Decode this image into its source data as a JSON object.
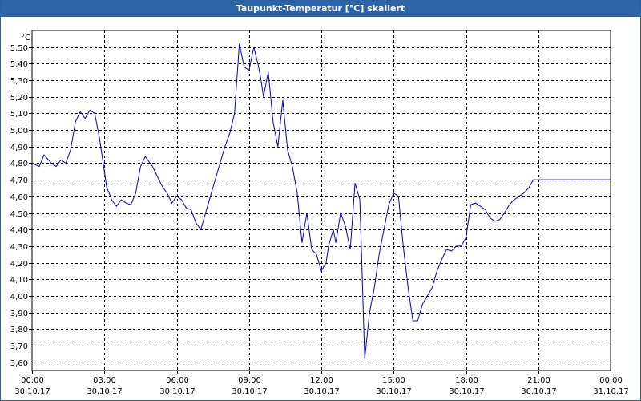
{
  "window": {
    "title": "Taupunkt-Temperatur [°C] skaliert"
  },
  "chart_data": {
    "type": "line",
    "title": "Taupunkt-Temperatur [°C] skaliert",
    "ylabel": "°C",
    "xlabel": "",
    "ylim": [
      3.55,
      5.6
    ],
    "yticks": [
      "3,60",
      "3,70",
      "3,80",
      "3,90",
      "4,00",
      "4,10",
      "4,20",
      "4,30",
      "4,40",
      "4,50",
      "4,60",
      "4,70",
      "4,80",
      "4,90",
      "5,00",
      "5,10",
      "5,20",
      "5,30",
      "5,40",
      "5,50"
    ],
    "yticks_values": [
      3.6,
      3.7,
      3.8,
      3.9,
      4.0,
      4.1,
      4.2,
      4.3,
      4.4,
      4.5,
      4.6,
      4.7,
      4.8,
      4.9,
      5.0,
      5.1,
      5.2,
      5.3,
      5.4,
      5.5
    ],
    "xticks": [
      {
        "time": "00:00",
        "date": "30.10.17"
      },
      {
        "time": "03:00",
        "date": "30.10.17"
      },
      {
        "time": "06:00",
        "date": "30.10.17"
      },
      {
        "time": "09:00",
        "date": "30.10.17"
      },
      {
        "time": "12:00",
        "date": "30.10.17"
      },
      {
        "time": "15:00",
        "date": "30.10.17"
      },
      {
        "time": "18:00",
        "date": "30.10.17"
      },
      {
        "time": "21:00",
        "date": "30.10.17"
      },
      {
        "time": "00:00",
        "date": "31.10.17"
      }
    ],
    "xlim_hours": [
      0,
      24
    ],
    "grid": true,
    "line_color": "#0000cc",
    "series": [
      {
        "x": [
          0,
          0.3,
          0.5,
          0.8,
          1.0,
          1.2,
          1.4,
          1.6,
          1.8,
          2.0,
          2.2,
          2.4,
          2.6,
          2.8,
          3.0,
          3.1,
          3.2,
          3.3,
          3.5,
          3.7,
          3.9,
          4.1,
          4.3,
          4.5,
          4.7,
          4.9,
          5.0,
          5.2,
          5.4,
          5.6,
          5.8,
          6.0,
          6.2,
          6.4,
          6.6,
          6.8,
          7.0,
          7.2,
          7.4,
          7.6,
          7.8,
          8.0,
          8.2,
          8.4,
          8.6,
          8.8,
          9.0,
          9.2,
          9.4,
          9.5,
          9.6,
          9.8,
          10.0,
          10.2,
          10.4,
          10.6,
          10.8,
          11.0,
          11.2,
          11.4,
          11.6,
          11.8,
          11.9,
          12.0,
          12.2,
          12.3,
          12.4,
          12.5,
          12.6,
          12.8,
          13.0,
          13.2,
          13.4,
          13.6,
          13.8,
          14.0,
          14.2,
          14.4,
          14.6,
          14.8,
          15.0,
          15.2,
          15.4,
          15.6,
          15.8,
          16.0,
          16.2,
          16.4,
          16.6,
          16.8,
          17.0,
          17.2,
          17.4,
          17.6,
          17.8,
          18.0,
          18.2,
          18.4,
          18.6,
          18.8,
          19.0,
          19.2,
          19.4,
          19.6,
          19.8,
          20.0,
          20.2,
          20.4,
          20.6,
          20.8,
          21.0,
          21.2,
          21.4,
          21.6,
          21.8,
          22.0,
          22.2,
          22.4,
          22.6,
          22.8,
          23.0,
          23.2,
          23.4,
          23.6,
          23.8,
          24.0
        ],
        "y": [
          4.8,
          4.78,
          4.85,
          4.8,
          4.78,
          4.82,
          4.8,
          4.88,
          5.05,
          5.11,
          5.07,
          5.12,
          5.1,
          4.95,
          4.75,
          4.65,
          4.62,
          4.58,
          4.54,
          4.58,
          4.56,
          4.55,
          4.62,
          4.78,
          4.84,
          4.8,
          4.78,
          4.72,
          4.66,
          4.62,
          4.56,
          4.6,
          4.58,
          4.53,
          4.52,
          4.44,
          4.4,
          4.5,
          4.6,
          4.7,
          4.8,
          4.9,
          4.98,
          5.1,
          5.52,
          5.38,
          5.36,
          5.5,
          5.38,
          5.3,
          5.2,
          5.35,
          5.05,
          4.9,
          5.18,
          4.88,
          4.78,
          4.62,
          4.32,
          4.5,
          4.28,
          4.25,
          4.2,
          4.15,
          4.2,
          4.3,
          4.35,
          4.4,
          4.32,
          4.5,
          4.42,
          4.28,
          4.68,
          4.58,
          3.62,
          3.9,
          4.05,
          4.25,
          4.4,
          4.55,
          4.62,
          4.6,
          4.3,
          4.05,
          3.85,
          3.85,
          3.95,
          4.0,
          4.05,
          4.15,
          4.22,
          4.28,
          4.27,
          4.3,
          4.3,
          4.35,
          4.55,
          4.56,
          4.54,
          4.52,
          4.47,
          4.45,
          4.46,
          4.5,
          4.55,
          4.58,
          4.6,
          4.62,
          4.65,
          4.7,
          4.7,
          4.7,
          4.7,
          4.7,
          4.7,
          4.7,
          4.7,
          4.7,
          4.7,
          4.7,
          4.7,
          4.7,
          4.7,
          4.7,
          4.7,
          4.7
        ]
      }
    ]
  }
}
